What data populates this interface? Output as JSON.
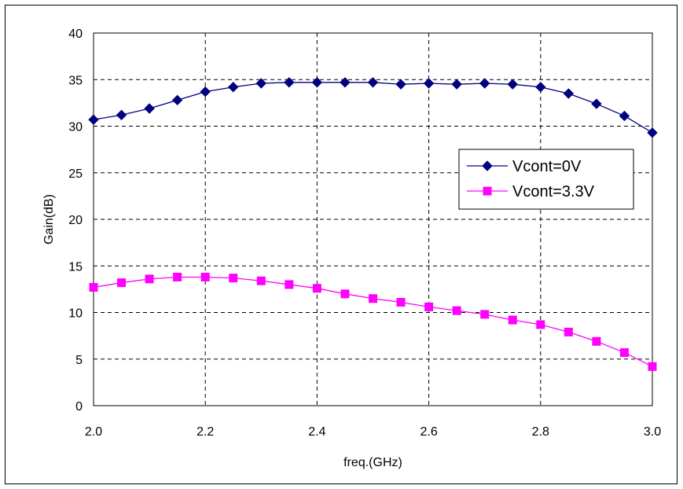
{
  "chart_data": {
    "type": "line",
    "xlabel": "freq.(GHz)",
    "ylabel": "Gain(dB)",
    "xlim": [
      2.0,
      3.0
    ],
    "ylim": [
      0,
      40
    ],
    "x_ticks": [
      "2.0",
      "2.2",
      "2.4",
      "2.6",
      "2.8",
      "3.0"
    ],
    "y_ticks": [
      "0",
      "5",
      "10",
      "15",
      "20",
      "25",
      "30",
      "35",
      "40"
    ],
    "grid": true,
    "legend_position": "right",
    "x": [
      2.0,
      2.05,
      2.1,
      2.15,
      2.2,
      2.25,
      2.3,
      2.35,
      2.4,
      2.45,
      2.5,
      2.55,
      2.6,
      2.65,
      2.7,
      2.75,
      2.8,
      2.85,
      2.9,
      2.95,
      3.0
    ],
    "series": [
      {
        "name": "Vcont=0V",
        "color": "#000080",
        "marker": "diamond",
        "values": [
          30.7,
          31.2,
          31.9,
          32.8,
          33.7,
          34.2,
          34.6,
          34.7,
          34.7,
          34.7,
          34.7,
          34.5,
          34.6,
          34.5,
          34.6,
          34.5,
          34.2,
          33.5,
          32.4,
          31.1,
          29.3
        ]
      },
      {
        "name": "Vcont=3.3V",
        "color": "#FF00FF",
        "marker": "square",
        "values": [
          12.7,
          13.2,
          13.6,
          13.8,
          13.8,
          13.7,
          13.4,
          13.0,
          12.6,
          12.0,
          11.5,
          11.1,
          10.6,
          10.2,
          9.8,
          9.2,
          8.7,
          7.9,
          6.9,
          5.7,
          4.2
        ]
      }
    ]
  }
}
